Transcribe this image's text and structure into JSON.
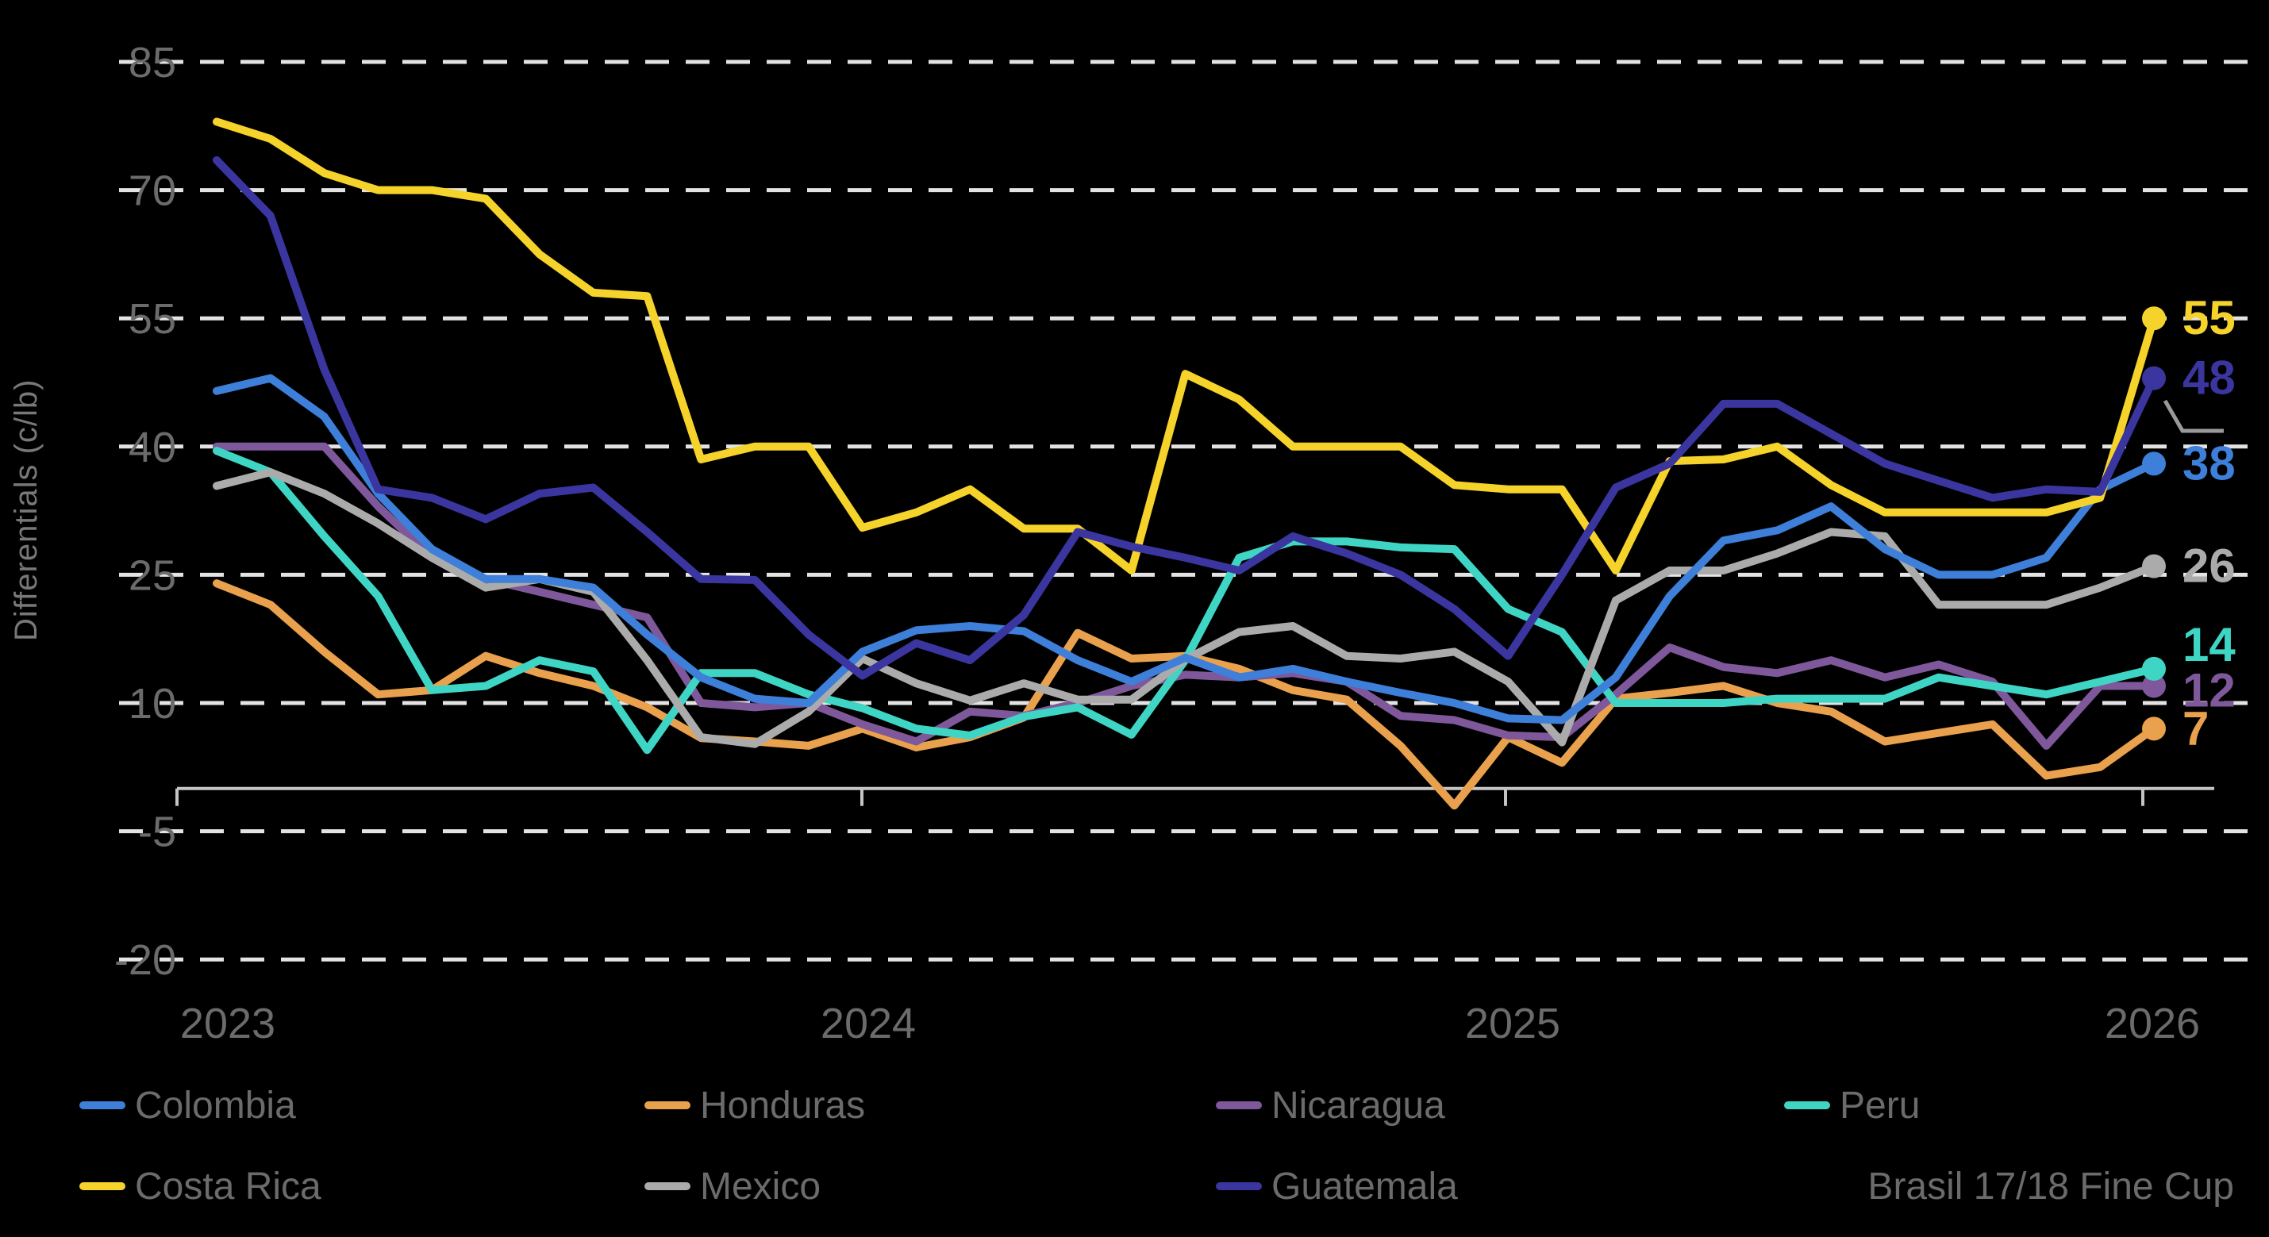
{
  "chart_data": {
    "type": "line",
    "title": "",
    "ylabel": "Differentials (c/lb)",
    "x_tick_labels": [
      "2023",
      "2024",
      "2025",
      "2026"
    ],
    "y_ticks": [
      85,
      70,
      55,
      40,
      25,
      10,
      -5,
      -20
    ],
    "ylim": [
      -20,
      85
    ],
    "x_range": "monthly estimates Jan 2023 - Jan 2026",
    "grid": "horizontal dashed white lines",
    "legend_position": "bottom",
    "annotation": "Brasil 17/18 Fine Cup",
    "series": [
      {
        "name": "Colombia",
        "color": "#3D7FD9",
        "end_label": "38",
        "label_dy": 0,
        "values": [
          46.5,
          48,
          43.5,
          34.5,
          28,
          24.5,
          24.5,
          23.5,
          18,
          13,
          10.5,
          10,
          16,
          18.5,
          19,
          18.4,
          15,
          12.5,
          15.3,
          13,
          14,
          12.5,
          11.2,
          10,
          8.2,
          8,
          13,
          22.5,
          29,
          30.2,
          33,
          28,
          25,
          25,
          27,
          35,
          38
        ]
      },
      {
        "name": "Honduras",
        "color": "#E9A14D",
        "end_label": "7",
        "label_dy": 0,
        "values": [
          24,
          21.5,
          16,
          11,
          11.5,
          15.5,
          13.5,
          12,
          9.5,
          5.9,
          5.5,
          5,
          7,
          4.8,
          6,
          8.3,
          18.2,
          15.2,
          15.5,
          14,
          11.5,
          10.4,
          5,
          -2,
          6,
          3,
          10.5,
          11.2,
          12,
          10,
          9,
          5.5,
          6.5,
          7.5,
          1.5,
          2.5,
          7
        ]
      },
      {
        "name": "Nicaragua",
        "color": "#7E589B",
        "end_label": "12",
        "label_dy": 6,
        "values": [
          40,
          40,
          40,
          33,
          27,
          24.5,
          23,
          21.5,
          20,
          10,
          9.5,
          10,
          7.5,
          5.5,
          9,
          8.5,
          10,
          12,
          13.3,
          13,
          13.5,
          12.5,
          8.5,
          8,
          6.2,
          6,
          11,
          16.5,
          14.2,
          13.5,
          15,
          13,
          14.5,
          12.5,
          5,
          12,
          12
        ]
      },
      {
        "name": "Peru",
        "color": "#3FD5C5",
        "end_label": "14",
        "label_dy": -30,
        "values": [
          39.5,
          37,
          29.5,
          22.5,
          11.5,
          12,
          15,
          13.7,
          4.5,
          13.5,
          13.5,
          11,
          9.4,
          7,
          6.2,
          8.4,
          9.5,
          6.3,
          15,
          27,
          28.9,
          28.9,
          28.2,
          28,
          21,
          18.3,
          10,
          10,
          10,
          10.5,
          10.5,
          10.5,
          13,
          12,
          11,
          12.5,
          14
        ]
      },
      {
        "name": "Costa Rica",
        "color": "#F5D32B",
        "end_label": "55",
        "label_dy": 0,
        "values": [
          78,
          76,
          72,
          70,
          70,
          69,
          62.5,
          58,
          57.6,
          38.5,
          40,
          40,
          30.5,
          32.3,
          35,
          30.4,
          30.4,
          25.5,
          48.5,
          45.5,
          40,
          40,
          40,
          35.5,
          35,
          35,
          25.5,
          38.3,
          38.5,
          40,
          35.5,
          32.3,
          32.3,
          32.3,
          32.3,
          34,
          55
        ]
      },
      {
        "name": "Mexico",
        "color": "#ABABAB",
        "end_label": "26",
        "label_dy": 0,
        "values": [
          35.4,
          37,
          34.5,
          31,
          27,
          23.5,
          24.5,
          23,
          15,
          6,
          5.2,
          9,
          15.2,
          12.3,
          10.3,
          12.3,
          10.4,
          10.4,
          15.1,
          18.3,
          19,
          15.5,
          15.2,
          16,
          12.5,
          5.4,
          22,
          25.5,
          25.5,
          27.5,
          30,
          29.5,
          21.5,
          21.5,
          21.5,
          23.5,
          26
        ]
      },
      {
        "name": "Guatemala",
        "color": "#3B35A0",
        "end_label": "48",
        "label_dy": 0,
        "values": [
          73.5,
          67,
          49,
          35,
          34,
          31.5,
          34.5,
          35.2,
          30,
          24.5,
          24.4,
          18,
          13.2,
          17,
          15,
          20.3,
          30,
          28.3,
          27,
          25.5,
          29.5,
          27.5,
          25,
          21,
          15.5,
          25,
          35.2,
          38,
          45,
          45,
          41.5,
          38,
          36,
          34,
          35,
          34.7,
          48
        ]
      }
    ]
  },
  "legend": {
    "rows": [
      [
        "Colombia",
        "Honduras",
        "Nicaragua",
        "Peru"
      ],
      [
        "Costa Rica",
        "Mexico",
        "Guatemala"
      ]
    ],
    "annotation": "Brasil 17/18 Fine Cup"
  },
  "colors": {
    "background": "#000000",
    "gridline": "#E3E3E3",
    "axis_line": "#C4C4C4",
    "tick_text": "#6B6B6B",
    "leader_mark": "#9A9A9A"
  }
}
